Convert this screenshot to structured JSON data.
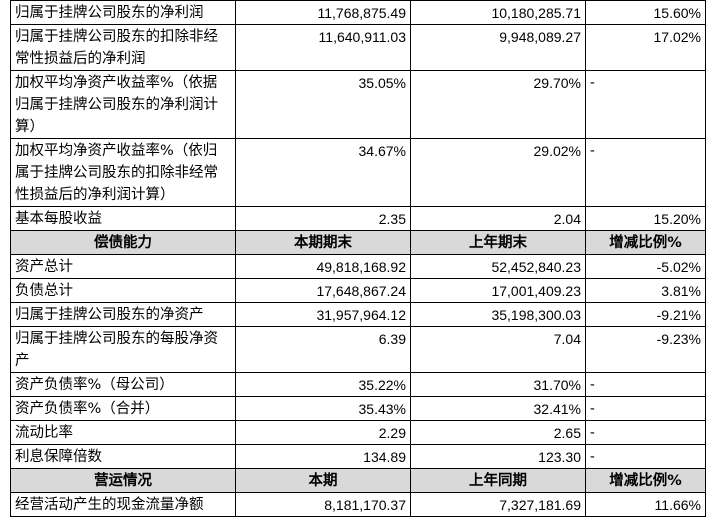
{
  "table": {
    "sections": [
      {
        "rows": [
          [
            "归属于挂牌公司股东的净利润",
            "11,768,875.49",
            "10,180,285.71",
            "15.60%"
          ],
          [
            "归属于挂牌公司股东的扣除非经常性损益后的净利润",
            "11,640,911.03",
            "9,948,089.27",
            "17.02%"
          ],
          [
            "加权平均净资产收益率%（依据归属于挂牌公司股东的净利润计算）",
            "35.05%",
            "29.70%",
            "-"
          ],
          [
            "加权平均净资产收益率%（依归属于挂牌公司股东的扣除非经常性损益后的净利润计算）",
            "34.67%",
            "29.02%",
            "-"
          ],
          [
            "基本每股收益",
            "2.35",
            "2.04",
            "15.20%"
          ]
        ]
      },
      {
        "header": [
          "偿债能力",
          "本期期末",
          "上年期末",
          "增减比例%"
        ],
        "rows": [
          [
            "资产总计",
            "49,818,168.92",
            "52,452,840.23",
            "-5.02%"
          ],
          [
            "负债总计",
            "17,648,867.24",
            "17,001,409.23",
            "3.81%"
          ],
          [
            "归属于挂牌公司股东的净资产",
            "31,957,964.12",
            "35,198,300.03",
            "-9.21%"
          ],
          [
            "归属于挂牌公司股东的每股净资产",
            "6.39",
            "7.04",
            "-9.23%"
          ],
          [
            "资产负债率%（母公司）",
            "35.22%",
            "31.70%",
            "-"
          ],
          [
            "资产负债率%（合并）",
            "35.43%",
            "32.41%",
            "-"
          ],
          [
            "流动比率",
            "2.29",
            "2.65",
            "-"
          ],
          [
            "利息保障倍数",
            "134.89",
            "123.30",
            "-"
          ]
        ]
      },
      {
        "header": [
          "营运情况",
          "本期",
          "上年同期",
          "增减比例%"
        ],
        "rows": [
          [
            "经营活动产生的现金流量净额",
            "8,181,170.37",
            "7,327,181.69",
            "11.66%"
          ]
        ]
      }
    ]
  }
}
